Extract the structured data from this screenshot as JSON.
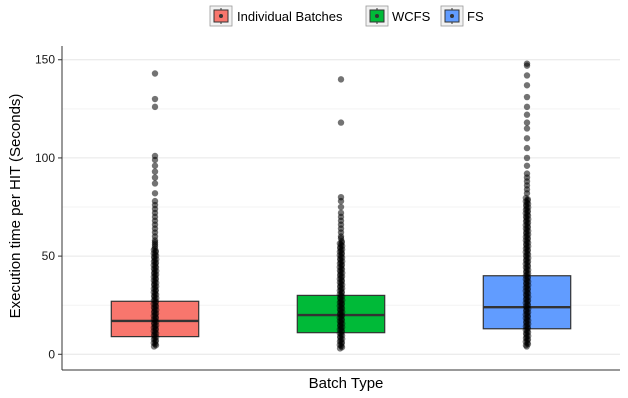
{
  "chart_data": {
    "type": "box",
    "title": "",
    "xlabel": "Batch Type",
    "ylabel": "Execution time per HIT (Seconds)",
    "ylim": [
      -8,
      157
    ],
    "yticks": [
      0,
      50,
      100,
      150
    ],
    "grid": true,
    "legend_position": "top",
    "categories": [
      "Individual Batches",
      "WCFS",
      "FS"
    ],
    "series": [
      {
        "name": "Individual Batches",
        "color": "#F8766D",
        "q1": 9,
        "median": 17,
        "q3": 27,
        "whisker_low": 4,
        "whisker_high": 54,
        "outliers": [
          55,
          56,
          57,
          58,
          60,
          62,
          64,
          66,
          68,
          70,
          72,
          74,
          76,
          78,
          82,
          87,
          90,
          93,
          96,
          99,
          101,
          126,
          130,
          143
        ]
      },
      {
        "name": "WCFS",
        "color": "#00BA38",
        "q1": 11,
        "median": 20,
        "q3": 30,
        "whisker_low": 3,
        "whisker_high": 58,
        "outliers": [
          59,
          60,
          62,
          64,
          66,
          68,
          70,
          72,
          75,
          78,
          80,
          118,
          140
        ]
      },
      {
        "name": "FS",
        "color": "#619CFF",
        "q1": 13,
        "median": 24,
        "q3": 40,
        "whisker_low": 4,
        "whisker_high": 80,
        "outliers": [
          82,
          84,
          86,
          88,
          90,
          92,
          96,
          100,
          105,
          110,
          115,
          118,
          122,
          126,
          131,
          137,
          142,
          147,
          148
        ]
      }
    ]
  }
}
